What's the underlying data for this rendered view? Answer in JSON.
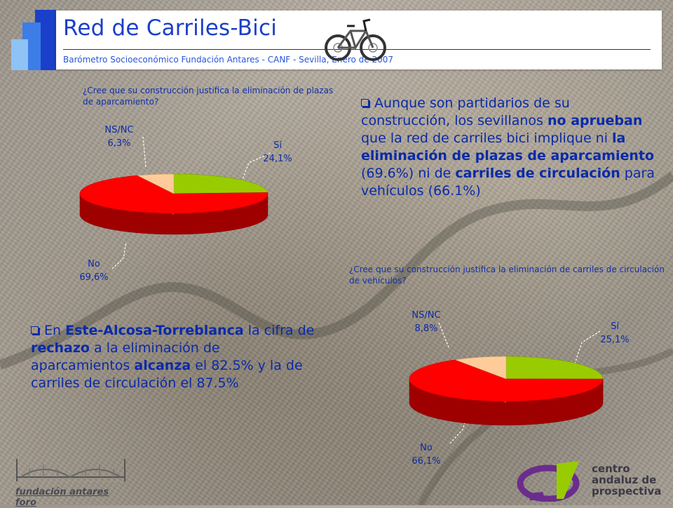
{
  "header": {
    "title": "Red de Carriles-Bici",
    "subtitle": "Barómetro Socioeconómico Fundación Antares - CANF - Sevilla, Enero de 2007"
  },
  "charts": {
    "chart1": {
      "question": "¿Cree que su construcción justifica la eliminación de plazas de aparcamiento?",
      "labels": {
        "si_name": "Sí",
        "si_value": "24,1%",
        "no_name": "No",
        "no_value": "69,6%",
        "nsnc_name": "NS/NC",
        "nsnc_value": "6,3%"
      }
    },
    "chart2": {
      "question": "¿Cree que su construcción justifica la eliminación de carriles de circulación de vehículos?",
      "labels": {
        "si_name": "Sí",
        "si_value": "25,1%",
        "no_name": "No",
        "no_value": "66,1%",
        "nsnc_name": "NS/NC",
        "nsnc_value": "8,8%"
      }
    }
  },
  "chart_data": [
    {
      "type": "pie",
      "title": "¿Cree que su construcción justifica la eliminación de plazas de aparcamiento?",
      "categories": [
        "Sí",
        "No",
        "NS/NC"
      ],
      "values": [
        24.1,
        69.6,
        6.3
      ],
      "colors": [
        "#99cc00",
        "#ff0000",
        "#ffcc99"
      ]
    },
    {
      "type": "pie",
      "title": "¿Cree que su construcción justifica la eliminación de carriles de circulación de vehículos?",
      "categories": [
        "Sí",
        "No",
        "NS/NC"
      ],
      "values": [
        25.1,
        66.1,
        8.8
      ],
      "colors": [
        "#99cc00",
        "#ff0000",
        "#ffcc99"
      ]
    }
  ],
  "bullets": {
    "b1": {
      "t1": "Aunque son partidarios de su construcción, los sevillanos ",
      "t2": "no aprueban",
      "t3": " que la red de carriles bici implique ni ",
      "t4": "la eliminación de plazas de aparcamiento",
      "t5": " (69.6%) ni de ",
      "t6": "carriles de circulación",
      "t7": " para vehículos (66.1%)"
    },
    "b2": {
      "t1": "En ",
      "t2": "Este-Alcosa-Torreblanca",
      "t3": " la cifra de ",
      "t4": "rechazo",
      "t5": " a la eliminación de aparcamientos ",
      "t6": "alcanza",
      "t7": " el 82.5% y la de carriles de circulación el 87.5%"
    }
  },
  "footer": {
    "foundation_name": "fundación antares foro",
    "centro_line1": "centro",
    "centro_line2": "andaluz de",
    "centro_line3": "prospectiva"
  },
  "colors": {
    "title_blue": "#1a3fc8",
    "text_blue": "#0a2aa8",
    "si_green": "#99cc00",
    "no_red": "#ff0000",
    "nsnc_peach": "#ffcc99"
  }
}
